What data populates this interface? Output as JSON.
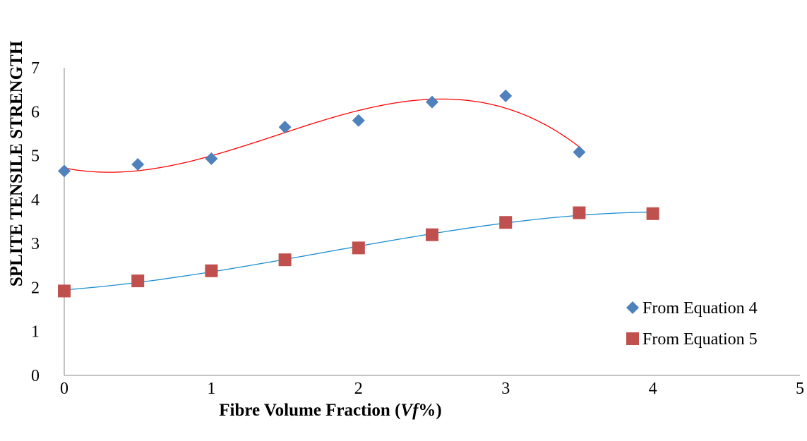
{
  "chart_data": {
    "type": "scatter",
    "xlabel_parts": [
      "Fibre Volume Fraction (",
      "Vf",
      "%)"
    ],
    "ylabel": "SPLITE TENSILE STRENGTH",
    "xlim": [
      0,
      5
    ],
    "ylim": [
      0,
      7
    ],
    "x_ticks": [
      "0",
      "1",
      "2",
      "3",
      "4",
      "5"
    ],
    "y_ticks": [
      "0",
      "1",
      "2",
      "3",
      "4",
      "5",
      "6",
      "7"
    ],
    "grid": false,
    "legend_position": "right",
    "series": [
      {
        "name": "From Equation 4",
        "marker": "diamond",
        "color": "#4F81BD",
        "trendline_color": "#FF0000",
        "trendline_type": "polynomial",
        "x": [
          0,
          0.5,
          1,
          1.5,
          2,
          2.5,
          3,
          3.5
        ],
        "y": [
          4.65,
          4.8,
          4.93,
          5.65,
          5.8,
          6.22,
          6.36,
          5.08
        ]
      },
      {
        "name": "From Equation 5",
        "marker": "square",
        "color": "#C0504D",
        "trendline_color": "#1F8FD0",
        "trendline_type": "polynomial",
        "x": [
          0,
          0.5,
          1,
          1.5,
          2,
          2.5,
          3,
          3.5,
          4
        ],
        "y": [
          1.92,
          2.15,
          2.38,
          2.63,
          2.9,
          3.2,
          3.48,
          3.7,
          3.68
        ]
      }
    ]
  }
}
